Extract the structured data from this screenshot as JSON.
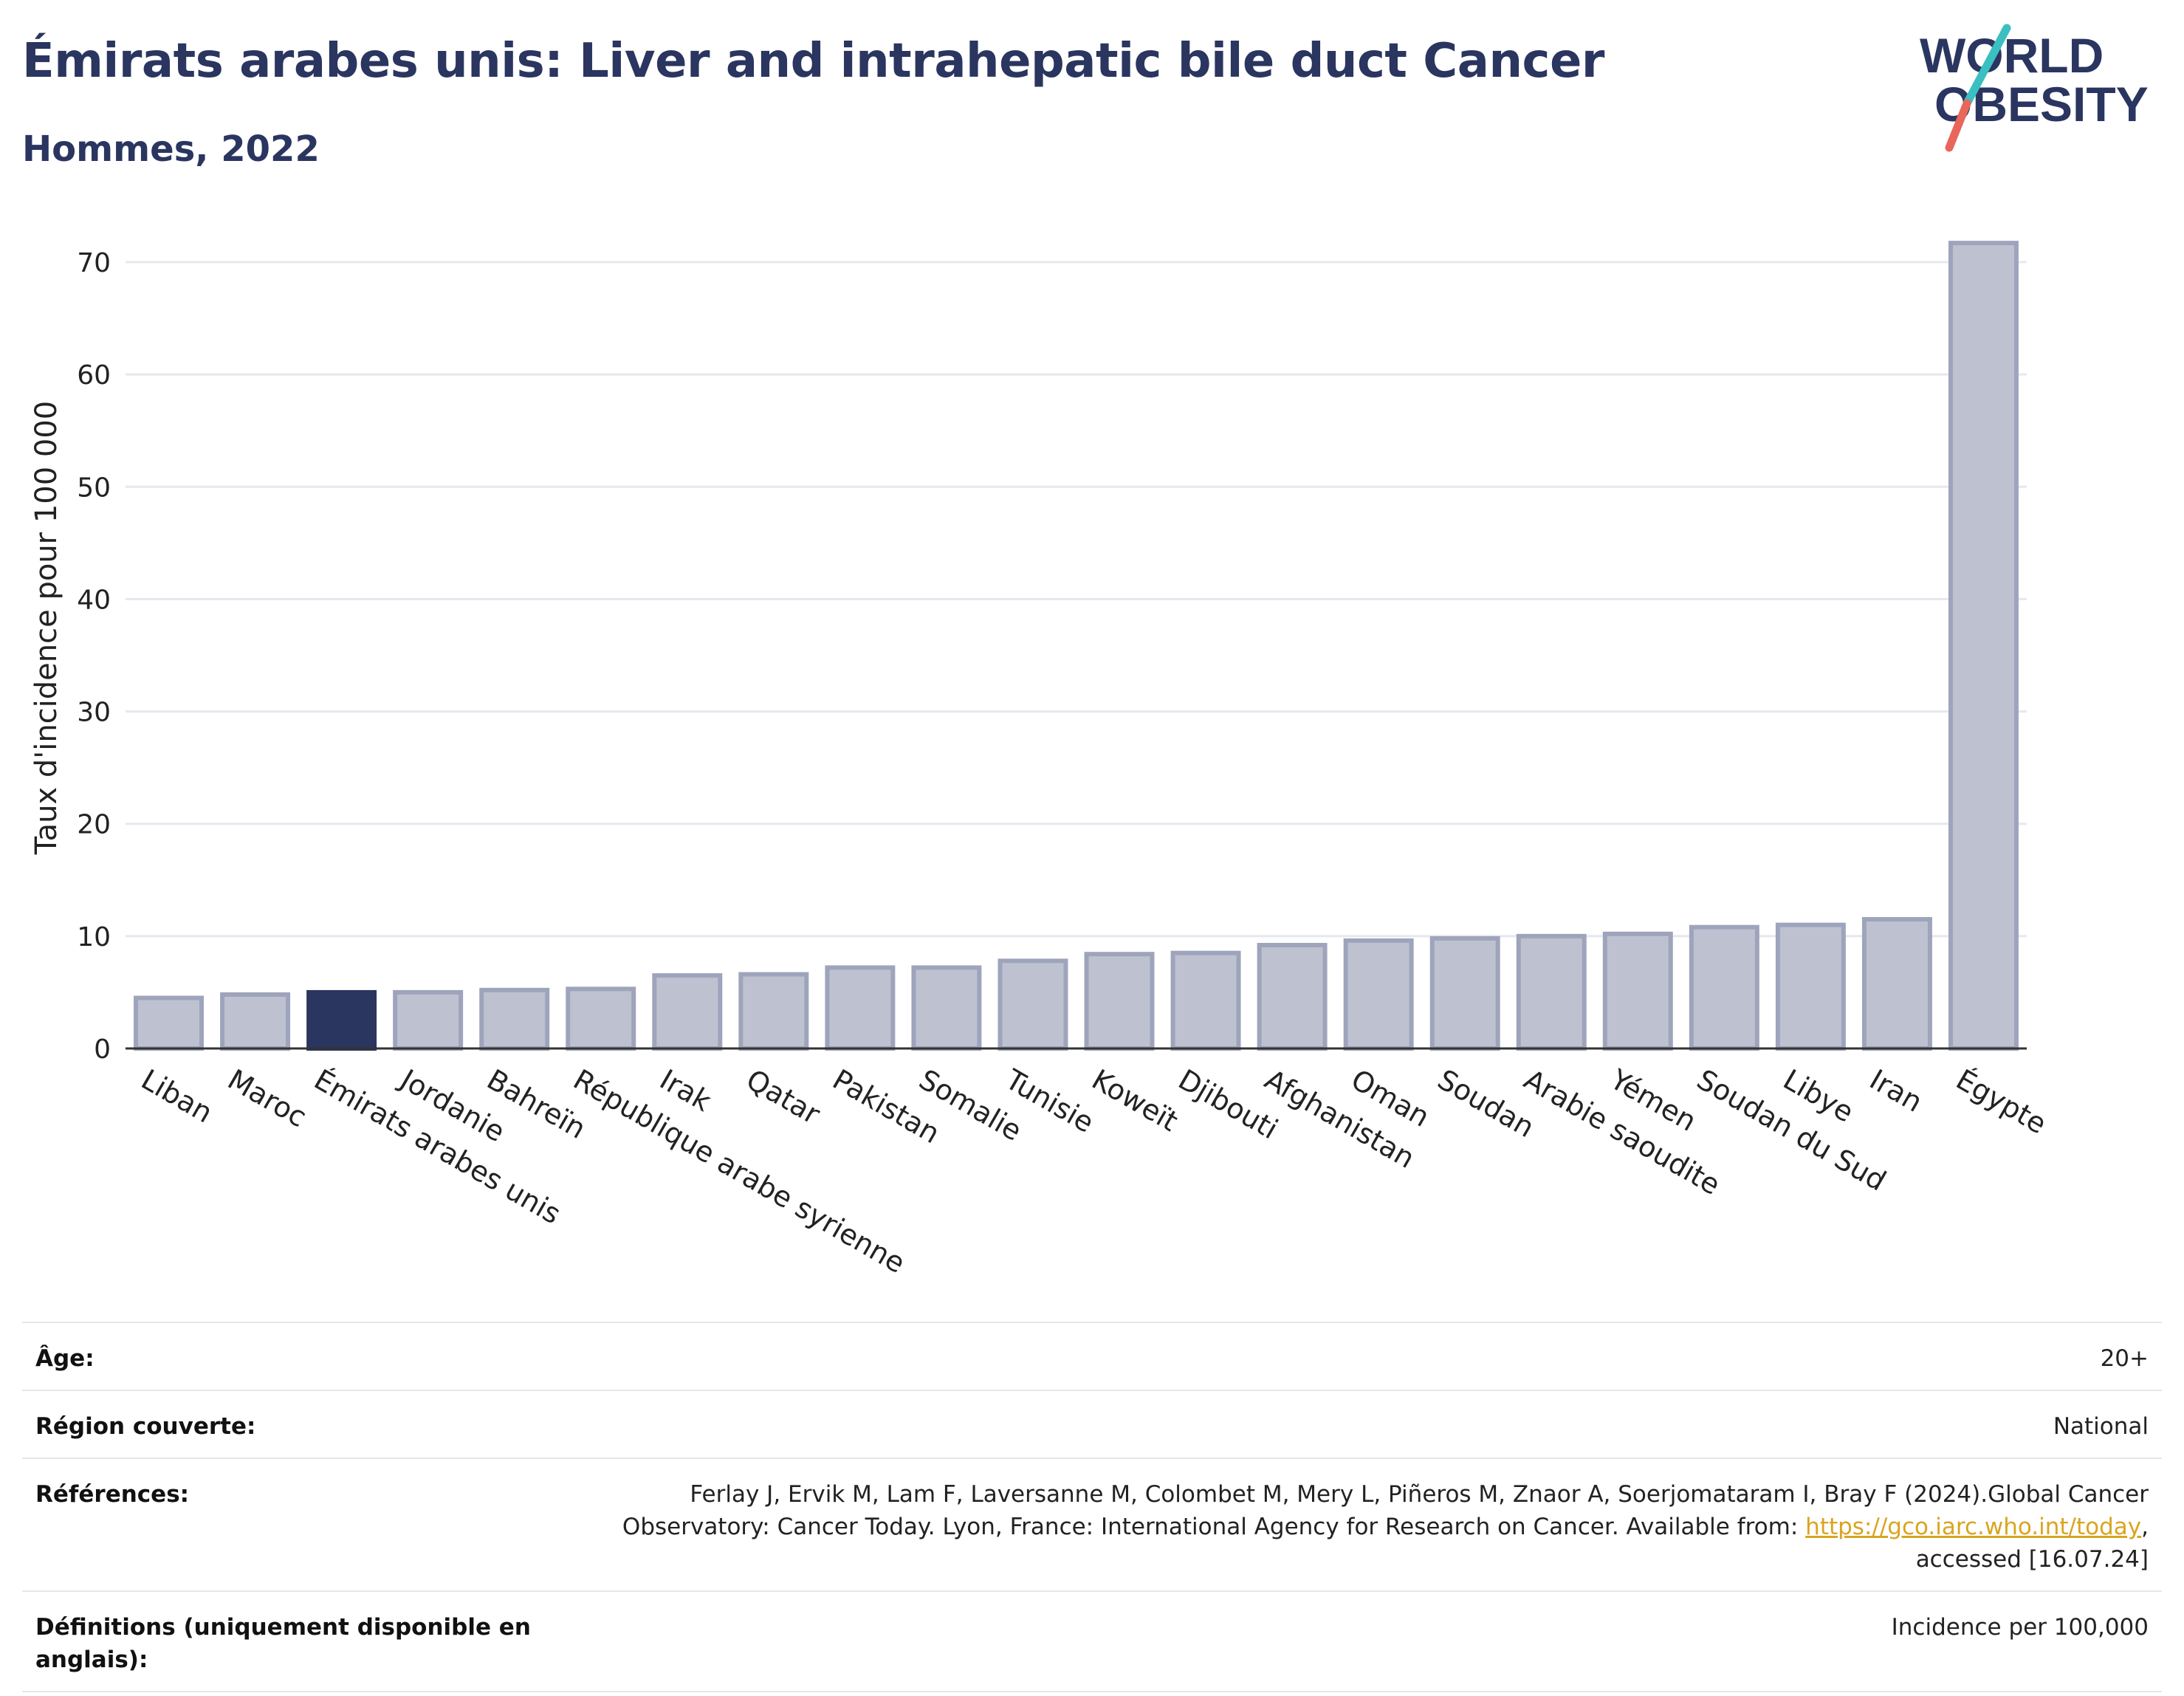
{
  "header": {
    "title": "Émirats arabes unis: Liver and intrahepatic bile duct Cancer",
    "subtitle": "Hommes, 2022"
  },
  "logo": {
    "line1": "WORLD",
    "line2": "OBESITY",
    "accent_teal": "#3bbfc0",
    "accent_coral": "#e8675a"
  },
  "colors": {
    "bar": "#bec2d0",
    "bar_border": "#9ea4bb",
    "highlight": "#2a3560",
    "grid": "#e6e8ee",
    "text": "#2a3560"
  },
  "chart_data": {
    "type": "bar",
    "ylabel": "Taux d'incidence pour 100 000",
    "ylim": [
      0,
      73
    ],
    "yticks": [
      0,
      10,
      20,
      30,
      40,
      50,
      60,
      70
    ],
    "grid": true,
    "highlight": "Émirats arabes unis",
    "categories": [
      "Liban",
      "Maroc",
      "Émirats arabes unis",
      "Jordanie",
      "Bahreïn",
      "République arabe syrienne",
      "Irak",
      "Qatar",
      "Pakistan",
      "Somalie",
      "Tunisie",
      "Koweït",
      "Djibouti",
      "Afghanistan",
      "Oman",
      "Soudan",
      "Arabie saoudite",
      "Yémen",
      "Soudan du Sud",
      "Libye",
      "Iran",
      "Égypte"
    ],
    "values": [
      4.5,
      4.8,
      5.0,
      5.0,
      5.2,
      5.3,
      6.5,
      6.6,
      7.2,
      7.2,
      7.8,
      8.4,
      8.5,
      9.2,
      9.6,
      9.8,
      10.0,
      10.2,
      10.8,
      11.0,
      11.5,
      71.7
    ]
  },
  "meta": {
    "age_label": "Âge:",
    "age_value": "20+",
    "region_label": "Région couverte:",
    "region_value": "National",
    "refs_label": "Références:",
    "refs_text": "Ferlay J, Ervik M, Lam F, Laversanne M, Colombet M, Mery L, Piñeros M, Znaor A, Soerjomataram I, Bray F (2024).Global Cancer Observatory: Cancer Today. Lyon, France: International Agency for Research on Cancer. Available from: ",
    "refs_link": "https://gco.iarc.who.int/today",
    "refs_tail": ", accessed [16.07.24]",
    "defs_label": "Définitions (uniquement disponible en anglais):",
    "defs_value": "Incidence per 100,000"
  }
}
